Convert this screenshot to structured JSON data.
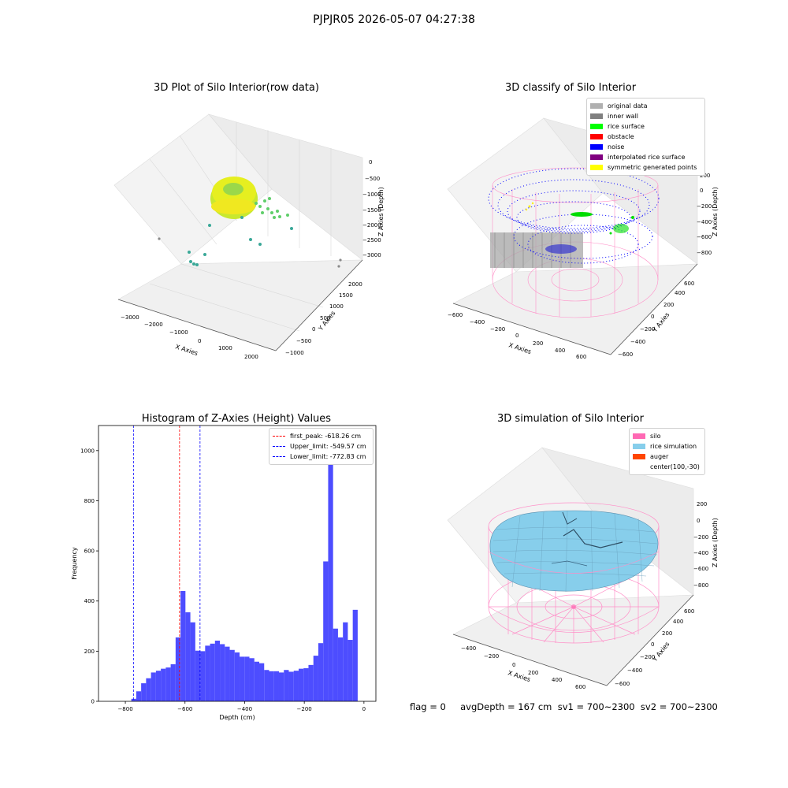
{
  "figure": {
    "suptitle": "PJPJR05 2026-05-07 04:27:38"
  },
  "panels": {
    "raw3d": {
      "title": "3D Plot of Silo Interior(row data)",
      "xlabel": "X Axies",
      "ylabel": "Y Axies",
      "zlabel": "Z Axies (Depth)",
      "xticks": [
        "−3000",
        "−2000",
        "−1000",
        "0",
        "1000",
        "2000"
      ],
      "yticks": [
        "−1000",
        "−500",
        "0",
        "500",
        "1000",
        "1500",
        "2000"
      ],
      "zticks": [
        "0",
        "−500",
        "−1000",
        "−1500",
        "−2000",
        "−2500",
        "−3000"
      ]
    },
    "classify3d": {
      "title": "3D classify of Silo Interior",
      "xlabel": "X Axies",
      "ylabel": "Y Axies",
      "zlabel": "Z Axies (Depth)",
      "xticks": [
        "−600",
        "−400",
        "−200",
        "0",
        "200",
        "400",
        "600"
      ],
      "yticks": [
        "−600",
        "−400",
        "−200",
        "0",
        "200",
        "400",
        "600"
      ],
      "zticks": [
        "200",
        "0",
        "−200",
        "−400",
        "−600",
        "−800"
      ],
      "legend": [
        {
          "label": "original data",
          "color": "#b0b0b0"
        },
        {
          "label": "inner wall",
          "color": "#808080"
        },
        {
          "label": "rice surface",
          "color": "#00ff00"
        },
        {
          "label": "obstacle",
          "color": "#ff0000"
        },
        {
          "label": "noise",
          "color": "#0000ff"
        },
        {
          "label": "interpolated rice surface",
          "color": "#800080"
        },
        {
          "label": "symmetric generated points",
          "color": "#ffff00"
        }
      ]
    },
    "histogram": {
      "title": "Histogram of Z-Axies (Height) Values",
      "xlabel": "Depth (cm)",
      "ylabel": "Frequency",
      "legend": [
        {
          "label": "first_peak: -618.26 cm",
          "color": "#ff0000"
        },
        {
          "label": "Upper_limit: -549.57 cm",
          "color": "#0000ff"
        },
        {
          "label": "Lower_limit: -772.83 cm",
          "color": "#0000ff"
        }
      ]
    },
    "simulation3d": {
      "title": "3D simulation of Silo Interior",
      "xlabel": "X Axies",
      "ylabel": "Y Axies",
      "zlabel": "Z Axies (Depth)",
      "xticks": [
        "−400",
        "−200",
        "0",
        "200",
        "400",
        "600"
      ],
      "yticks": [
        "−600",
        "−400",
        "−200",
        "0",
        "200",
        "400",
        "600"
      ],
      "zticks": [
        "200",
        "0",
        "−200",
        "−400",
        "−600",
        "−800"
      ],
      "legend": [
        {
          "label": "silo",
          "color": "#ff69b4"
        },
        {
          "label": "rice simulation",
          "color": "#87ceeb"
        },
        {
          "label": "auger",
          "color": "#ff4500"
        },
        {
          "label": "center(100,-30)",
          "color": ""
        }
      ]
    }
  },
  "footer": {
    "text": "flag = 0     avgDepth = 167 cm  sv1 = 700~2300  sv2 = 700~2300"
  },
  "chart_data": {
    "type": "bar",
    "title": "Histogram of Z-Axies (Height) Values",
    "xlabel": "Depth (cm)",
    "ylabel": "Frequency",
    "xlim": [
      -890,
      40
    ],
    "ylim": [
      0,
      1100
    ],
    "xticks": [
      -800,
      -600,
      -400,
      -200,
      0
    ],
    "yticks": [
      0,
      200,
      400,
      600,
      800,
      1000
    ],
    "bin_width": 16.5,
    "bin_start": -780,
    "values": [
      10,
      40,
      72,
      92,
      115,
      122,
      130,
      135,
      148,
      255,
      440,
      355,
      315,
      202,
      200,
      222,
      230,
      242,
      228,
      218,
      205,
      195,
      178,
      178,
      172,
      158,
      152,
      125,
      120,
      120,
      115,
      125,
      118,
      122,
      130,
      132,
      145,
      182,
      232,
      558,
      1040,
      290,
      255,
      315,
      245,
      365
    ],
    "vlines": [
      {
        "x": -618.26,
        "color": "#ff0000",
        "style": "dashed"
      },
      {
        "x": -549.57,
        "color": "#0000ff",
        "style": "dashed"
      },
      {
        "x": -772.83,
        "color": "#0000ff",
        "style": "dashed"
      }
    ],
    "legend_loc": "upper right",
    "bar_color": "#4d4dff"
  }
}
